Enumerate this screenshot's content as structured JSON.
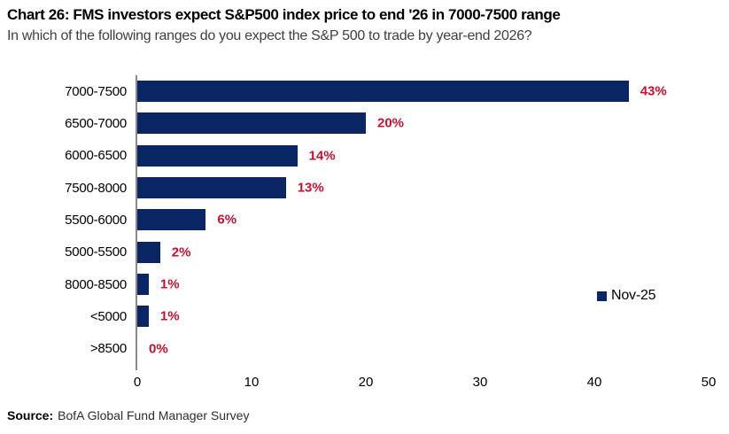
{
  "header": {
    "title": "Chart 26: FMS investors expect S&P500 index price to end '26 in 7000-7500 range",
    "subtitle": "In which of the following ranges do you expect the S&P 500 to trade by year-end 2026?"
  },
  "chart_data": {
    "type": "bar",
    "orientation": "horizontal",
    "title": "Chart 26: FMS investors expect S&P500 index price to end '26 in 7000-7500 range",
    "subtitle": "In which of the following ranges do you expect the S&P 500 to trade by year-end 2026?",
    "categories": [
      "7000-7500",
      "6500-7000",
      "6000-6500",
      "7500-8000",
      "5500-6000",
      "5000-5500",
      "8000-8500",
      "<5000",
      ">8500"
    ],
    "series": [
      {
        "name": "Nov-25",
        "values": [
          43,
          20,
          14,
          13,
          6,
          2,
          1,
          1,
          0
        ]
      }
    ],
    "value_labels": [
      "43%",
      "20%",
      "14%",
      "13%",
      "6%",
      "2%",
      "1%",
      "1%",
      "0%"
    ],
    "xlabel": "",
    "ylabel": "",
    "xlim": [
      0,
      50
    ],
    "x_ticks": [
      0,
      10,
      20,
      30,
      40,
      50
    ],
    "grid": false,
    "legend_position": "right-middle",
    "colors": {
      "bar": "#0a2664",
      "value_label": "#c8102e",
      "axis_line": "#8a8a8a"
    }
  },
  "legend": {
    "label": "Nov-25"
  },
  "footer": {
    "source_label": "Source:",
    "source_text": "BofA Global Fund Manager Survey"
  }
}
